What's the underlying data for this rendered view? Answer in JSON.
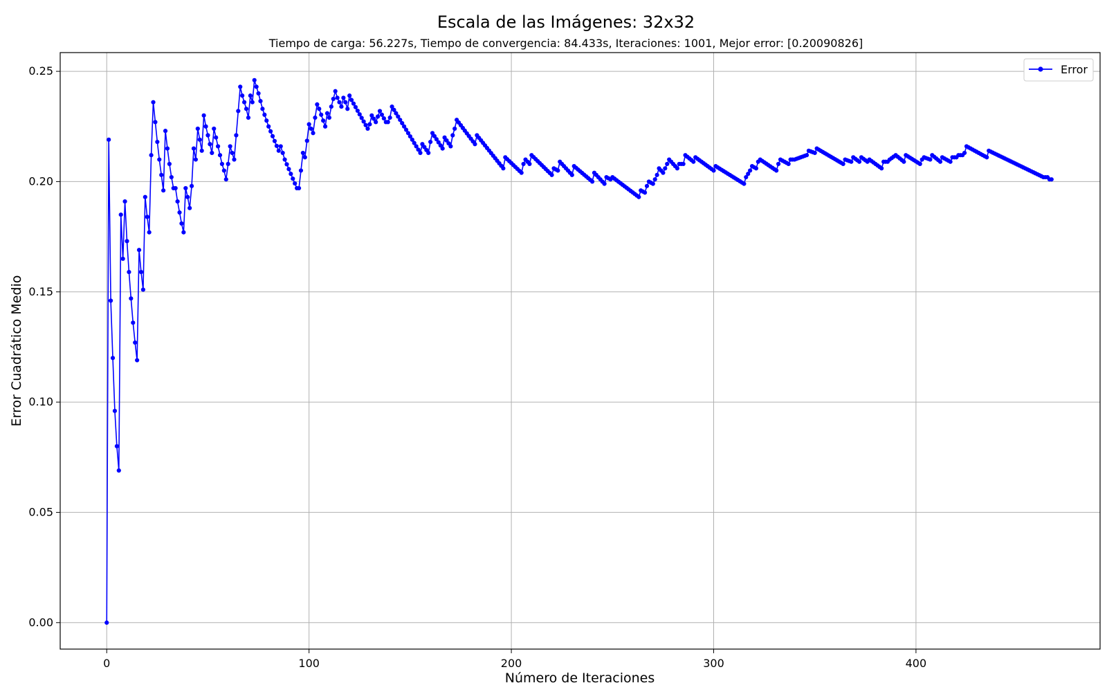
{
  "chart_data": {
    "type": "line",
    "title": "Escala de las Imágenes: 32x32",
    "subtitle": "Tiempo de carga: 56.227s, Tiempo de convergencia: 84.433s, Iteraciones: 1001, Mejor error: [0.20090826]",
    "xlabel": "Número de Iteraciones",
    "ylabel": "Error Cuadrático Medio",
    "xlim": [
      -23,
      491
    ],
    "ylim": [
      -0.012,
      0.2585
    ],
    "xticks": [
      0,
      100,
      200,
      300,
      400
    ],
    "xtick_labels": [
      "0",
      "100",
      "200",
      "300",
      "400"
    ],
    "yticks": [
      0.0,
      0.05,
      0.1,
      0.15,
      0.2,
      0.25
    ],
    "ytick_labels": [
      "0.00",
      "0.05",
      "0.10",
      "0.15",
      "0.20",
      "0.25"
    ],
    "grid": true,
    "legend": {
      "position": "top-right",
      "entries": [
        "Error"
      ]
    },
    "series": [
      {
        "name": "Error",
        "color": "#0000ff",
        "marker": "circle",
        "keypoints": [
          [
            0,
            0.0
          ],
          [
            1,
            0.219
          ],
          [
            2,
            0.146
          ],
          [
            3,
            0.12
          ],
          [
            4,
            0.096
          ],
          [
            5,
            0.08
          ],
          [
            6,
            0.069
          ],
          [
            7,
            0.185
          ],
          [
            8,
            0.165
          ],
          [
            9,
            0.191
          ],
          [
            10,
            0.173
          ],
          [
            11,
            0.159
          ],
          [
            12,
            0.147
          ],
          [
            13,
            0.136
          ],
          [
            14,
            0.127
          ],
          [
            15,
            0.119
          ],
          [
            16,
            0.169
          ],
          [
            17,
            0.159
          ],
          [
            18,
            0.151
          ],
          [
            19,
            0.193
          ],
          [
            20,
            0.184
          ],
          [
            21,
            0.177
          ],
          [
            22,
            0.212
          ],
          [
            23,
            0.236
          ],
          [
            24,
            0.227
          ],
          [
            25,
            0.218
          ],
          [
            26,
            0.21
          ],
          [
            27,
            0.203
          ],
          [
            28,
            0.196
          ],
          [
            29,
            0.223
          ],
          [
            30,
            0.215
          ],
          [
            31,
            0.208
          ],
          [
            32,
            0.202
          ],
          [
            33,
            0.197
          ],
          [
            34,
            0.197
          ],
          [
            35,
            0.191
          ],
          [
            36,
            0.186
          ],
          [
            37,
            0.181
          ],
          [
            38,
            0.177
          ],
          [
            39,
            0.197
          ],
          [
            40,
            0.193
          ],
          [
            41,
            0.188
          ],
          [
            42,
            0.198
          ],
          [
            43,
            0.215
          ],
          [
            44,
            0.21
          ],
          [
            45,
            0.224
          ],
          [
            46,
            0.219
          ],
          [
            47,
            0.214
          ],
          [
            48,
            0.23
          ],
          [
            49,
            0.225
          ],
          [
            50,
            0.221
          ],
          [
            51,
            0.217
          ],
          [
            52,
            0.213
          ],
          [
            53,
            0.224
          ],
          [
            54,
            0.22
          ],
          [
            55,
            0.216
          ],
          [
            56,
            0.212
          ],
          [
            57,
            0.208
          ],
          [
            58,
            0.205
          ],
          [
            59,
            0.201
          ],
          [
            60,
            0.208
          ],
          [
            61,
            0.216
          ],
          [
            62,
            0.213
          ],
          [
            63,
            0.21
          ],
          [
            64,
            0.221
          ],
          [
            65,
            0.232
          ],
          [
            66,
            0.243
          ],
          [
            67,
            0.239
          ],
          [
            68,
            0.236
          ],
          [
            69,
            0.233
          ],
          [
            70,
            0.229
          ],
          [
            71,
            0.239
          ],
          [
            72,
            0.236
          ],
          [
            73,
            0.246
          ],
          [
            74,
            0.243
          ],
          [
            75,
            0.24
          ],
          [
            77,
            0.233
          ],
          [
            80,
            0.225
          ],
          [
            85,
            0.214
          ],
          [
            86,
            0.216
          ],
          [
            88,
            0.21
          ],
          [
            94,
            0.197
          ],
          [
            95,
            0.197
          ],
          [
            97,
            0.213
          ],
          [
            98,
            0.211
          ],
          [
            100,
            0.226
          ],
          [
            101,
            0.224
          ],
          [
            102,
            0.222
          ],
          [
            103,
            0.229
          ],
          [
            104,
            0.235
          ],
          [
            105,
            0.233
          ],
          [
            108,
            0.225
          ],
          [
            109,
            0.231
          ],
          [
            110,
            0.229
          ],
          [
            111,
            0.234
          ],
          [
            113,
            0.241
          ],
          [
            114,
            0.238
          ],
          [
            116,
            0.234
          ],
          [
            117,
            0.238
          ],
          [
            118,
            0.236
          ],
          [
            119,
            0.233
          ],
          [
            120,
            0.239
          ],
          [
            121,
            0.237
          ],
          [
            129,
            0.224
          ],
          [
            130,
            0.226
          ],
          [
            131,
            0.23
          ],
          [
            133,
            0.227
          ],
          [
            135,
            0.232
          ],
          [
            138,
            0.227
          ],
          [
            139,
            0.227
          ],
          [
            140,
            0.229
          ],
          [
            141,
            0.234
          ],
          [
            155,
            0.213
          ],
          [
            156,
            0.217
          ],
          [
            159,
            0.213
          ],
          [
            160,
            0.218
          ],
          [
            161,
            0.222
          ],
          [
            166,
            0.215
          ],
          [
            167,
            0.22
          ],
          [
            170,
            0.216
          ],
          [
            171,
            0.221
          ],
          [
            172,
            0.224
          ],
          [
            173,
            0.228
          ],
          [
            182,
            0.217
          ],
          [
            183,
            0.221
          ],
          [
            196,
            0.206
          ],
          [
            197,
            0.211
          ],
          [
            205,
            0.204
          ],
          [
            206,
            0.208
          ],
          [
            207,
            0.21
          ],
          [
            209,
            0.208
          ],
          [
            210,
            0.212
          ],
          [
            220,
            0.203
          ],
          [
            221,
            0.206
          ],
          [
            223,
            0.205
          ],
          [
            224,
            0.209
          ],
          [
            230,
            0.203
          ],
          [
            231,
            0.207
          ],
          [
            240,
            0.2
          ],
          [
            241,
            0.204
          ],
          [
            246,
            0.199
          ],
          [
            247,
            0.202
          ],
          [
            249,
            0.201
          ],
          [
            250,
            0.202
          ],
          [
            263,
            0.193
          ],
          [
            264,
            0.196
          ],
          [
            266,
            0.195
          ],
          [
            267,
            0.198
          ],
          [
            268,
            0.2
          ],
          [
            270,
            0.199
          ],
          [
            272,
            0.203
          ],
          [
            273,
            0.206
          ],
          [
            275,
            0.204
          ],
          [
            277,
            0.208
          ],
          [
            278,
            0.21
          ],
          [
            282,
            0.206
          ],
          [
            283,
            0.208
          ],
          [
            285,
            0.208
          ],
          [
            286,
            0.212
          ],
          [
            290,
            0.209
          ],
          [
            291,
            0.211
          ],
          [
            300,
            0.205
          ],
          [
            301,
            0.207
          ],
          [
            315,
            0.199
          ],
          [
            316,
            0.202
          ],
          [
            318,
            0.205
          ],
          [
            319,
            0.207
          ],
          [
            321,
            0.206
          ],
          [
            322,
            0.209
          ],
          [
            323,
            0.21
          ],
          [
            331,
            0.205
          ],
          [
            332,
            0.208
          ],
          [
            333,
            0.21
          ],
          [
            337,
            0.208
          ],
          [
            338,
            0.21
          ],
          [
            340,
            0.21
          ],
          [
            343,
            0.211
          ],
          [
            346,
            0.212
          ],
          [
            347,
            0.214
          ],
          [
            350,
            0.213
          ],
          [
            351,
            0.215
          ],
          [
            364,
            0.208
          ],
          [
            365,
            0.21
          ],
          [
            368,
            0.209
          ],
          [
            369,
            0.211
          ],
          [
            372,
            0.209
          ],
          [
            373,
            0.211
          ],
          [
            376,
            0.209
          ],
          [
            377,
            0.21
          ],
          [
            383,
            0.206
          ],
          [
            384,
            0.209
          ],
          [
            386,
            0.209
          ],
          [
            387,
            0.21
          ],
          [
            390,
            0.212
          ],
          [
            394,
            0.209
          ],
          [
            395,
            0.212
          ],
          [
            402,
            0.208
          ],
          [
            403,
            0.21
          ],
          [
            404,
            0.211
          ],
          [
            407,
            0.21
          ],
          [
            408,
            0.212
          ],
          [
            412,
            0.209
          ],
          [
            413,
            0.211
          ],
          [
            417,
            0.209
          ],
          [
            418,
            0.211
          ],
          [
            420,
            0.211
          ],
          [
            421,
            0.212
          ],
          [
            423,
            0.212
          ],
          [
            424,
            0.213
          ],
          [
            425,
            0.216
          ],
          [
            435,
            0.211
          ],
          [
            436,
            0.214
          ],
          [
            463,
            0.202
          ],
          [
            464,
            0.202
          ],
          [
            465,
            0.202
          ],
          [
            466,
            0.201
          ],
          [
            467,
            0.201
          ]
        ]
      }
    ]
  }
}
